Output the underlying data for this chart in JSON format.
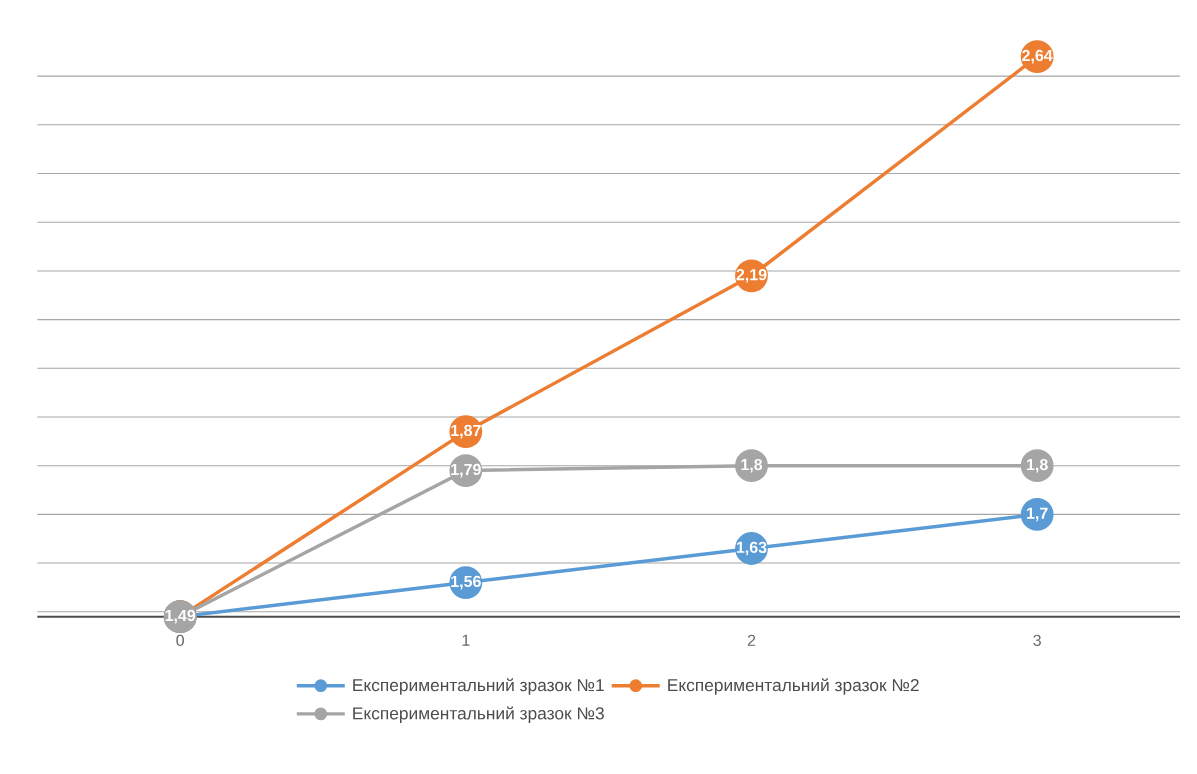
{
  "chart_data": {
    "type": "line",
    "categories": [
      "0",
      "1",
      "2",
      "3"
    ],
    "series": [
      {
        "name": "Експериментальний зразок №1",
        "color": "#5b9bd5",
        "values": [
          1.49,
          1.56,
          1.63,
          1.7
        ],
        "value_labels": [
          null,
          "1,56",
          "1,63",
          "1,7"
        ]
      },
      {
        "name": "Експериментальний зразок №2",
        "color": "#ed7d31",
        "values": [
          1.49,
          1.87,
          2.19,
          2.64
        ],
        "value_labels": [
          null,
          "1,87",
          "2,19",
          "2,64"
        ]
      },
      {
        "name": "Експериментальний зразок №3",
        "color": "#a5a5a5",
        "values": [
          1.49,
          1.79,
          1.8,
          1.8
        ],
        "value_labels": [
          "1,49",
          "1,79",
          "1,8",
          "1,8"
        ]
      }
    ],
    "tick_labels": "x",
    "grid": "y",
    "legend": "bottom",
    "marker": "circle",
    "line_style": "solid"
  }
}
